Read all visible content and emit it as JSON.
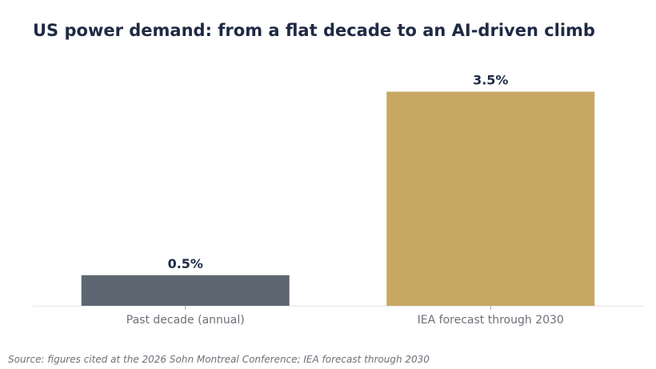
{
  "chart_data": {
    "type": "bar",
    "title": "US power demand: from a flat decade to an AI-driven climb",
    "categories": [
      "Past decade (annual)",
      "IEA forecast through 2030"
    ],
    "values": [
      0.5,
      3.5
    ],
    "value_labels": [
      "0.5%",
      "3.5%"
    ],
    "bar_colors": [
      "#5e6671",
      "#c6a862"
    ],
    "xlabel": "",
    "ylabel": "",
    "ylim": [
      0,
      3.9
    ],
    "grid": false,
    "legend": "none"
  },
  "source_note": "Source: figures cited at the 2026 Sohn Montreal Conference; IEA forecast through 2030",
  "colors": {
    "title": "#1f2a44",
    "value_label": "#1f2a44",
    "tick_label": "#6b7078",
    "axis_line": "#e6e6e6"
  }
}
